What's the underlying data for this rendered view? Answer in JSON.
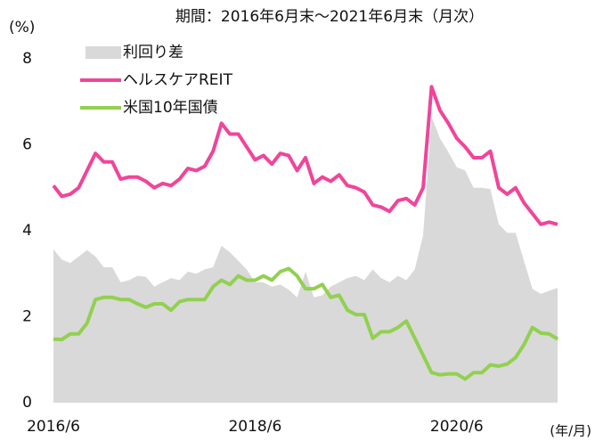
{
  "chart_data": {
    "type": "line",
    "title": "期間：2016年6月末～2021年6月末（月次）",
    "y_label": "(%)",
    "x_label": "(年/月)",
    "categories": [
      "2016/6",
      null,
      null,
      null,
      null,
      null,
      null,
      null,
      null,
      null,
      null,
      null,
      null,
      null,
      null,
      null,
      null,
      null,
      null,
      null,
      null,
      null,
      null,
      null,
      "2018/6",
      null,
      null,
      null,
      null,
      null,
      null,
      null,
      null,
      null,
      null,
      null,
      null,
      null,
      null,
      null,
      null,
      null,
      null,
      null,
      null,
      null,
      null,
      null,
      "2020/6",
      null,
      null,
      null,
      null,
      null,
      null,
      null,
      null,
      null,
      null,
      null,
      null
    ],
    "series": [
      {
        "name": "利回り差",
        "kind": "area",
        "color": "#d9d9d9",
        "values": [
          3.57,
          3.33,
          3.25,
          3.4,
          3.55,
          3.4,
          3.15,
          3.15,
          2.8,
          2.85,
          2.95,
          2.93,
          2.7,
          2.8,
          2.9,
          2.85,
          3.05,
          3.0,
          3.1,
          3.15,
          3.65,
          3.5,
          3.3,
          3.1,
          2.8,
          2.8,
          2.7,
          2.75,
          2.63,
          2.45,
          3.05,
          2.45,
          2.5,
          2.7,
          2.8,
          2.9,
          2.95,
          2.85,
          3.1,
          2.9,
          2.8,
          2.95,
          2.85,
          3.1,
          3.9,
          6.65,
          6.15,
          5.83,
          5.48,
          5.4,
          5.0,
          5.0,
          4.97,
          4.15,
          3.95,
          3.95,
          3.3,
          2.65,
          2.53,
          2.6,
          2.67
        ]
      },
      {
        "name": "ヘルスケアREIT",
        "kind": "line",
        "color": "#f0459a",
        "values": [
          5.05,
          4.8,
          4.85,
          5.0,
          5.4,
          5.8,
          5.6,
          5.6,
          5.2,
          5.25,
          5.25,
          5.15,
          5.0,
          5.1,
          5.05,
          5.2,
          5.45,
          5.4,
          5.5,
          5.85,
          6.5,
          6.25,
          6.25,
          5.95,
          5.65,
          5.75,
          5.55,
          5.8,
          5.75,
          5.4,
          5.7,
          5.1,
          5.25,
          5.15,
          5.3,
          5.05,
          5.0,
          4.9,
          4.6,
          4.55,
          4.45,
          4.7,
          4.75,
          4.6,
          5.0,
          7.35,
          6.8,
          6.5,
          6.15,
          5.95,
          5.7,
          5.7,
          5.85,
          5.0,
          4.85,
          5.0,
          4.65,
          4.4,
          4.15,
          4.2,
          4.15
        ]
      },
      {
        "name": "米国10年国債",
        "kind": "line",
        "color": "#92d050",
        "values": [
          1.48,
          1.47,
          1.6,
          1.6,
          1.85,
          2.4,
          2.45,
          2.45,
          2.4,
          2.4,
          2.3,
          2.22,
          2.3,
          2.3,
          2.15,
          2.35,
          2.4,
          2.4,
          2.4,
          2.7,
          2.85,
          2.75,
          2.95,
          2.85,
          2.85,
          2.95,
          2.85,
          3.05,
          3.12,
          2.95,
          2.65,
          2.65,
          2.75,
          2.45,
          2.5,
          2.15,
          2.05,
          2.05,
          1.5,
          1.65,
          1.65,
          1.75,
          1.9,
          1.5,
          1.1,
          0.7,
          0.65,
          0.67,
          0.67,
          0.55,
          0.7,
          0.7,
          0.88,
          0.85,
          0.9,
          1.05,
          1.35,
          1.75,
          1.62,
          1.6,
          1.48
        ]
      }
    ],
    "ylim": [
      0,
      8
    ],
    "yticks": [
      0,
      2,
      4,
      6,
      8
    ],
    "grid": false
  }
}
